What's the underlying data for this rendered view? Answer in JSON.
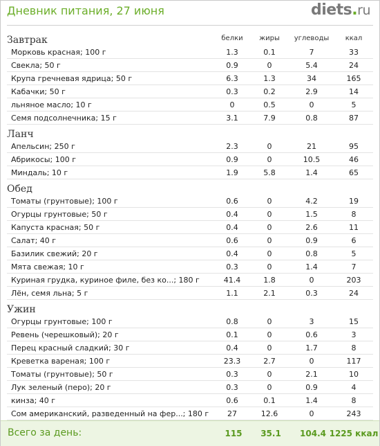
{
  "header": {
    "title": "Дневник питания, 27 июня",
    "logo_main": "diets",
    "logo_dot": ".",
    "logo_tld": "ru"
  },
  "columns": {
    "protein": "белки",
    "fat": "жиры",
    "carbs": "углеводы",
    "kcal": "ккал"
  },
  "sections": [
    {
      "name": "Завтрак",
      "items": [
        {
          "name": "Морковь красная; 100 г",
          "b": "1.3",
          "z": "0.1",
          "u": "7",
          "k": "33"
        },
        {
          "name": "Свекла; 50 г",
          "b": "0.9",
          "z": "0",
          "u": "5.4",
          "k": "24"
        },
        {
          "name": "Крупа гречневая ядрица; 50 г",
          "b": "6.3",
          "z": "1.3",
          "u": "34",
          "k": "165"
        },
        {
          "name": "Кабачки; 50 г",
          "b": "0.3",
          "z": "0.2",
          "u": "2.9",
          "k": "14"
        },
        {
          "name": "льняное масло; 10 г",
          "b": "0",
          "z": "0.5",
          "u": "0",
          "k": "5"
        },
        {
          "name": "Семя подсолнечника; 15 г",
          "b": "3.1",
          "z": "7.9",
          "u": "0.8",
          "k": "87"
        }
      ]
    },
    {
      "name": "Ланч",
      "items": [
        {
          "name": "Апельсин; 250 г",
          "b": "2.3",
          "z": "0",
          "u": "21",
          "k": "95"
        },
        {
          "name": "Абрикосы; 100 г",
          "b": "0.9",
          "z": "0",
          "u": "10.5",
          "k": "46"
        },
        {
          "name": "Миндаль; 10 г",
          "b": "1.9",
          "z": "5.8",
          "u": "1.4",
          "k": "65"
        }
      ]
    },
    {
      "name": "Обед",
      "items": [
        {
          "name": "Томаты (грунтовые); 100 г",
          "b": "0.6",
          "z": "0",
          "u": "4.2",
          "k": "19"
        },
        {
          "name": "Огурцы грунтовые; 50 г",
          "b": "0.4",
          "z": "0",
          "u": "1.5",
          "k": "8"
        },
        {
          "name": "Капуста красная; 50 г",
          "b": "0.4",
          "z": "0",
          "u": "2.6",
          "k": "11"
        },
        {
          "name": "Салат; 40 г",
          "b": "0.6",
          "z": "0",
          "u": "0.9",
          "k": "6"
        },
        {
          "name": "Базилик свежий; 20 г",
          "b": "0.4",
          "z": "0",
          "u": "0.8",
          "k": "5"
        },
        {
          "name": "Мята свежая; 10 г",
          "b": "0.3",
          "z": "0",
          "u": "1.4",
          "k": "7"
        },
        {
          "name": "Куриная грудка, куриное филе, без ко...; 180 г",
          "b": "41.4",
          "z": "1.8",
          "u": "0",
          "k": "203"
        },
        {
          "name": "Лён, семя льна; 5 г",
          "b": "1.1",
          "z": "2.1",
          "u": "0.3",
          "k": "24"
        }
      ]
    },
    {
      "name": "Ужин",
      "items": [
        {
          "name": "Огурцы грунтовые; 100 г",
          "b": "0.8",
          "z": "0",
          "u": "3",
          "k": "15"
        },
        {
          "name": "Ревень (черешковый); 20 г",
          "b": "0.1",
          "z": "0",
          "u": "0.6",
          "k": "3"
        },
        {
          "name": "Перец красный сладкий; 30 г",
          "b": "0.4",
          "z": "0",
          "u": "1.7",
          "k": "8"
        },
        {
          "name": "Креветка вареная; 100 г",
          "b": "23.3",
          "z": "2.7",
          "u": "0",
          "k": "117"
        },
        {
          "name": "Томаты (грунтовые); 50 г",
          "b": "0.3",
          "z": "0",
          "u": "2.1",
          "k": "10"
        },
        {
          "name": "Лук зеленый (перо); 20 г",
          "b": "0.3",
          "z": "0",
          "u": "0.9",
          "k": "4"
        },
        {
          "name": "кинза; 40 г",
          "b": "0.6",
          "z": "0.1",
          "u": "1.4",
          "k": "8"
        },
        {
          "name": "Сом американский, разведенный на фер...; 180 г",
          "b": "27",
          "z": "12.6",
          "u": "0",
          "k": "243"
        }
      ]
    }
  ],
  "total": {
    "label": "Всего за день:",
    "b": "115",
    "z": "35.1",
    "u": "104.4",
    "k": "1225 ккал"
  },
  "colors": {
    "accent": "#6cae2a",
    "total_bg": "#edf5e3"
  }
}
